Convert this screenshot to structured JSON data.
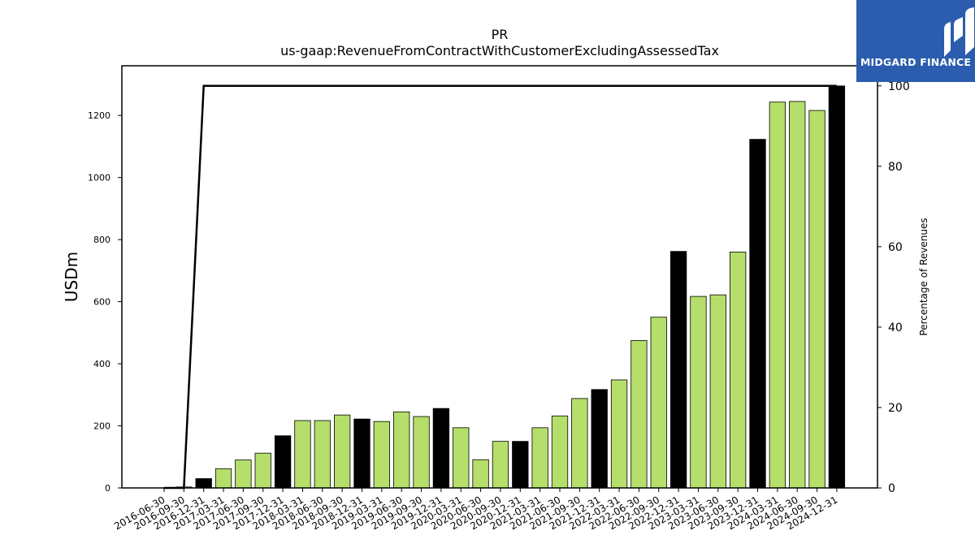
{
  "chart_data": {
    "type": "bar",
    "title": "PR",
    "subtitle": "us-gaap:RevenueFromContractWithCustomerExcludingAssessedTax",
    "ylabel": "USDm",
    "y2label": "Percentage of Revenues",
    "ylim": [
      0,
      1360
    ],
    "y2lim": [
      0,
      105
    ],
    "yticks": [
      0,
      200,
      400,
      600,
      800,
      1000,
      1200
    ],
    "y2ticks": [
      0,
      20,
      40,
      60,
      80,
      100
    ],
    "categories": [
      "2016-06-30",
      "2016-09-30",
      "2016-12-31",
      "2017-03-31",
      "2017-06-30",
      "2017-09-30",
      "2017-12-31",
      "2018-03-31",
      "2018-06-30",
      "2018-09-30",
      "2018-12-31",
      "2019-03-31",
      "2019-06-30",
      "2019-09-30",
      "2019-12-31",
      "2020-03-31",
      "2020-06-30",
      "2020-09-30",
      "2020-12-31",
      "2021-03-31",
      "2021-06-30",
      "2021-09-30",
      "2021-12-31",
      "2022-03-31",
      "2022-06-30",
      "2022-09-30",
      "2022-12-31",
      "2023-03-31",
      "2023-06-30",
      "2023-09-30",
      "2023-12-31",
      "2024-03-31",
      "2024-06-30",
      "2024-09-30",
      "2024-12-31"
    ],
    "values": [
      0,
      3,
      30,
      62,
      90,
      112,
      168,
      217,
      217,
      235,
      222,
      214,
      245,
      230,
      256,
      194,
      91,
      150,
      150,
      194,
      232,
      288,
      317,
      348,
      475,
      550,
      762,
      617,
      622,
      760,
      1123,
      1243,
      1245,
      1216,
      1295
    ],
    "bar_kind": [
      "quarter",
      "quarter",
      "annual",
      "quarter",
      "quarter",
      "quarter",
      "annual",
      "quarter",
      "quarter",
      "quarter",
      "annual",
      "quarter",
      "quarter",
      "quarter",
      "annual",
      "quarter",
      "quarter",
      "quarter",
      "annual",
      "quarter",
      "quarter",
      "quarter",
      "annual",
      "quarter",
      "quarter",
      "quarter",
      "annual",
      "quarter",
      "quarter",
      "quarter",
      "annual",
      "quarter",
      "quarter",
      "quarter",
      "annual"
    ],
    "percentage_line": [
      0,
      0,
      100,
      100,
      100,
      100,
      100,
      100,
      100,
      100,
      100,
      100,
      100,
      100,
      100,
      100,
      100,
      100,
      100,
      100,
      100,
      100,
      100,
      100,
      100,
      100,
      100,
      100,
      100,
      100,
      100,
      100,
      100,
      100,
      100
    ],
    "colors": {
      "quarter": "#b5de6a",
      "annual": "#000000",
      "line": "#000000"
    },
    "grid": false,
    "legend": "none"
  },
  "logo": {
    "text": "MIDGARD FINANCE",
    "color": "#2b5cad"
  }
}
